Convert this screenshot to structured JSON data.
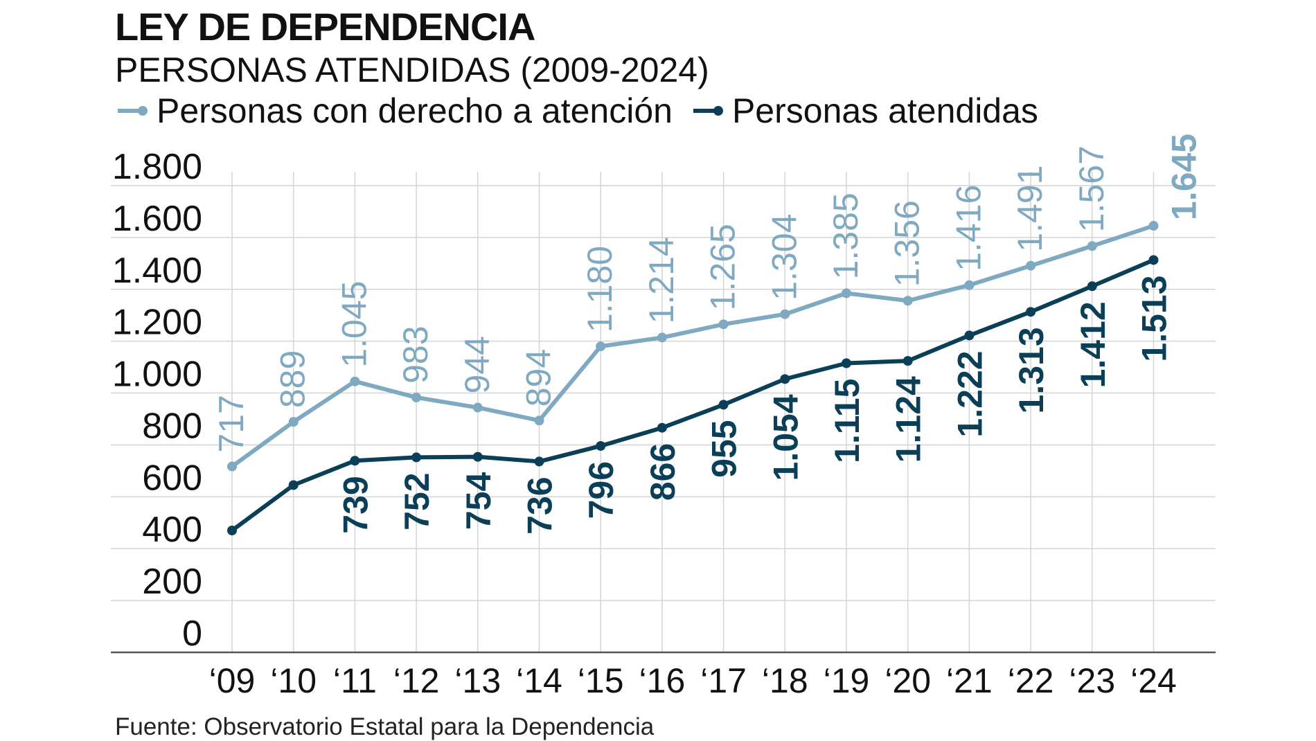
{
  "header": {
    "title": "LEY DE DEPENDENCIA",
    "subtitle_main": "PERSONAS ATENDIDAS",
    "subtitle_years": "(2009-2024)"
  },
  "footer": {
    "source": "Fuente: Observatorio Estatal para la Dependencia"
  },
  "colors": {
    "light_series": "#7fa9c1",
    "dark_series": "#0b3f57",
    "grid": "#d4d4d4",
    "axis": "#555555"
  },
  "chart_data": {
    "type": "line",
    "title": "LEY DE DEPENDENCIA",
    "subtitle": "PERSONAS ATENDIDAS (2009-2024)",
    "xlabel": "",
    "ylabel": "",
    "ylim": [
      0,
      1800
    ],
    "y_ticks": [
      0,
      200,
      400,
      600,
      800,
      1000,
      1200,
      1400,
      1600,
      1800
    ],
    "y_tick_labels": [
      "0",
      "200",
      "400",
      "600",
      "800",
      "1.000",
      "1.200",
      "1.400",
      "1.600",
      "1.800"
    ],
    "grid": true,
    "legend_position": "top-left",
    "categories": [
      "‘09",
      "‘10",
      "‘11",
      "‘12",
      "‘13",
      "‘14",
      "‘15",
      "‘16",
      "‘17",
      "‘18",
      "‘19",
      "‘20",
      "‘21",
      "‘22",
      "‘23",
      "‘24"
    ],
    "series": [
      {
        "name": "Personas con derecho a atención",
        "values": [
          717,
          889,
          1045,
          983,
          944,
          894,
          1180,
          1214,
          1265,
          1304,
          1385,
          1356,
          1416,
          1491,
          1567,
          1645
        ],
        "labels": [
          "717",
          "889",
          "1.045",
          "983",
          "944",
          "894",
          "1.180",
          "1.214",
          "1.265",
          "1.304",
          "1.385",
          "1.356",
          "1.416",
          "1.491",
          "1.567",
          "1.645"
        ]
      },
      {
        "name": "Personas atendidas",
        "values": [
          470,
          645,
          739,
          752,
          754,
          736,
          796,
          866,
          955,
          1054,
          1115,
          1124,
          1222,
          1313,
          1412,
          1513
        ],
        "labels": [
          "",
          "",
          "739",
          "752",
          "754",
          "736",
          "796",
          "866",
          "955",
          "1.054",
          "1.115",
          "1.124",
          "1.222",
          "1.313",
          "1.412",
          "1.513"
        ]
      }
    ],
    "annotations": []
  }
}
